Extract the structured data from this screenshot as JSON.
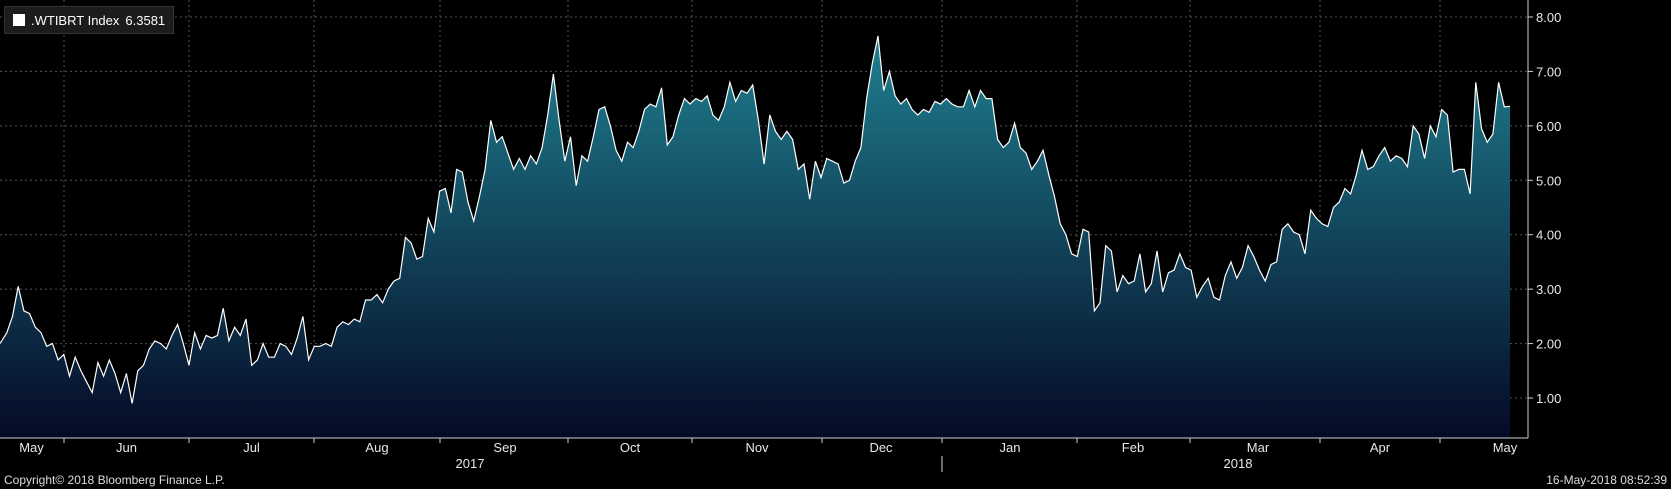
{
  "legend": {
    "series_label": ".WTIBRT Index",
    "last_value": "6.3581",
    "color": "#ffffff"
  },
  "footer": {
    "copyright": "Copyright© 2018 Bloomberg Finance L.P.",
    "timestamp": "16-May-2018 08:52:39"
  },
  "chart_data": {
    "type": "area",
    "ylim": [
      0.3,
      8.2
    ],
    "y_ticks": [
      1.0,
      2.0,
      3.0,
      4.0,
      5.0,
      6.0,
      7.0,
      8.0
    ],
    "y_tick_labels": [
      "1.00",
      "2.00",
      "3.00",
      "4.00",
      "5.00",
      "6.00",
      "7.00",
      "8.00"
    ],
    "grid": true,
    "colors": {
      "line": "#ffffff",
      "fill_top": "#1f7f90",
      "fill_bottom": "#050a26"
    },
    "x_month_labels": [
      {
        "label": "May",
        "x": 31.5
      },
      {
        "label": "Jun",
        "x": 126.5
      },
      {
        "label": "Jul",
        "x": 251.5
      },
      {
        "label": "Aug",
        "x": 377
      },
      {
        "label": "Sep",
        "x": 505
      },
      {
        "label": "Oct",
        "x": 630
      },
      {
        "label": "Nov",
        "x": 757
      },
      {
        "label": "Dec",
        "x": 881
      },
      {
        "label": "Jan",
        "x": 1010
      },
      {
        "label": "Feb",
        "x": 1133
      },
      {
        "label": "Mar",
        "x": 1258
      },
      {
        "label": "Apr",
        "x": 1380
      },
      {
        "label": "May",
        "x": 1505
      }
    ],
    "x_month_boundaries": [
      64,
      189,
      314,
      440,
      568,
      692,
      822,
      942,
      1077,
      1190,
      1320,
      1440
    ],
    "x_year_labels": [
      {
        "label": "2017",
        "x": 470
      },
      {
        "label": "2018",
        "x": 1238
      }
    ],
    "x_year_boundary": 942,
    "x_range": [
      0,
      1510
    ],
    "points": [
      [
        0,
        2.0
      ],
      [
        6,
        2.2
      ],
      [
        11,
        2.5
      ],
      [
        16,
        3.05
      ],
      [
        21,
        2.6
      ],
      [
        26,
        2.55
      ],
      [
        31,
        2.3
      ],
      [
        36,
        2.2
      ],
      [
        41,
        1.95
      ],
      [
        46,
        2.0
      ],
      [
        51,
        1.7
      ],
      [
        56,
        1.8
      ],
      [
        61,
        1.4
      ],
      [
        66,
        1.75
      ],
      [
        71,
        1.5
      ],
      [
        76,
        1.3
      ],
      [
        81,
        1.1
      ],
      [
        86,
        1.65
      ],
      [
        91,
        1.4
      ],
      [
        96,
        1.7
      ],
      [
        101,
        1.45
      ],
      [
        106,
        1.1
      ],
      [
        111,
        1.45
      ],
      [
        116,
        0.9
      ],
      [
        121,
        1.5
      ],
      [
        126,
        1.6
      ],
      [
        131,
        1.9
      ],
      [
        136,
        2.05
      ],
      [
        141,
        2.0
      ],
      [
        146,
        1.9
      ],
      [
        151,
        2.15
      ],
      [
        156,
        2.35
      ],
      [
        161,
        2.0
      ],
      [
        166,
        1.6
      ],
      [
        171,
        2.2
      ],
      [
        176,
        1.9
      ],
      [
        181,
        2.15
      ],
      [
        186,
        2.1
      ],
      [
        191,
        2.15
      ],
      [
        196,
        2.65
      ],
      [
        201,
        2.05
      ],
      [
        206,
        2.3
      ],
      [
        211,
        2.15
      ],
      [
        216,
        2.45
      ],
      [
        221,
        1.6
      ],
      [
        226,
        1.7
      ],
      [
        231,
        2.0
      ],
      [
        236,
        1.75
      ],
      [
        241,
        1.75
      ],
      [
        246,
        2.0
      ],
      [
        251,
        1.95
      ],
      [
        256,
        1.8
      ],
      [
        261,
        2.1
      ],
      [
        266,
        2.5
      ],
      [
        271,
        1.7
      ],
      [
        276,
        1.95
      ],
      [
        281,
        1.95
      ],
      [
        286,
        2.0
      ],
      [
        291,
        1.95
      ],
      [
        296,
        2.3
      ],
      [
        301,
        2.4
      ],
      [
        306,
        2.35
      ],
      [
        311,
        2.45
      ],
      [
        316,
        2.4
      ],
      [
        321,
        2.8
      ],
      [
        326,
        2.8
      ],
      [
        331,
        2.9
      ],
      [
        336,
        2.75
      ],
      [
        341,
        3.0
      ],
      [
        346,
        3.15
      ],
      [
        351,
        3.2
      ],
      [
        356,
        3.95
      ],
      [
        361,
        3.85
      ],
      [
        366,
        3.55
      ],
      [
        371,
        3.6
      ],
      [
        376,
        4.3
      ],
      [
        381,
        4.05
      ],
      [
        386,
        4.8
      ],
      [
        391,
        4.85
      ],
      [
        396,
        4.4
      ],
      [
        401,
        5.2
      ],
      [
        406,
        5.15
      ],
      [
        411,
        4.6
      ],
      [
        416,
        4.25
      ],
      [
        421,
        4.7
      ],
      [
        426,
        5.2
      ],
      [
        431,
        6.1
      ],
      [
        436,
        5.7
      ],
      [
        441,
        5.8
      ],
      [
        446,
        5.5
      ],
      [
        451,
        5.2
      ],
      [
        456,
        5.4
      ],
      [
        461,
        5.2
      ],
      [
        466,
        5.45
      ],
      [
        471,
        5.3
      ],
      [
        476,
        5.6
      ],
      [
        481,
        6.2
      ],
      [
        486,
        6.95
      ],
      [
        491,
        6.1
      ],
      [
        496,
        5.35
      ],
      [
        501,
        5.8
      ],
      [
        506,
        4.9
      ],
      [
        511,
        5.45
      ],
      [
        516,
        5.35
      ],
      [
        521,
        5.8
      ],
      [
        526,
        6.3
      ],
      [
        531,
        6.35
      ],
      [
        536,
        6.0
      ],
      [
        541,
        5.55
      ],
      [
        546,
        5.35
      ],
      [
        551,
        5.7
      ],
      [
        556,
        5.6
      ],
      [
        561,
        5.9
      ],
      [
        566,
        6.3
      ],
      [
        571,
        6.4
      ],
      [
        576,
        6.35
      ],
      [
        581,
        6.7
      ],
      [
        586,
        5.65
      ],
      [
        591,
        5.8
      ],
      [
        596,
        6.2
      ],
      [
        601,
        6.5
      ],
      [
        606,
        6.4
      ],
      [
        611,
        6.5
      ],
      [
        616,
        6.45
      ],
      [
        621,
        6.55
      ],
      [
        626,
        6.2
      ],
      [
        631,
        6.1
      ],
      [
        636,
        6.35
      ],
      [
        641,
        6.8
      ],
      [
        646,
        6.45
      ],
      [
        651,
        6.65
      ],
      [
        656,
        6.6
      ],
      [
        661,
        6.75
      ],
      [
        666,
        6.1
      ],
      [
        671,
        5.3
      ],
      [
        676,
        6.2
      ],
      [
        681,
        5.9
      ],
      [
        686,
        5.75
      ],
      [
        691,
        5.9
      ],
      [
        696,
        5.75
      ],
      [
        701,
        5.2
      ],
      [
        706,
        5.3
      ],
      [
        711,
        4.65
      ],
      [
        716,
        5.35
      ],
      [
        721,
        5.05
      ],
      [
        726,
        5.4
      ],
      [
        731,
        5.35
      ],
      [
        736,
        5.3
      ],
      [
        741,
        4.95
      ],
      [
        746,
        5.0
      ],
      [
        751,
        5.35
      ],
      [
        756,
        5.6
      ],
      [
        761,
        6.5
      ],
      [
        766,
        7.15
      ],
      [
        771,
        7.65
      ],
      [
        776,
        6.65
      ],
      [
        781,
        7.0
      ],
      [
        786,
        6.55
      ],
      [
        791,
        6.4
      ],
      [
        796,
        6.5
      ],
      [
        801,
        6.3
      ],
      [
        806,
        6.2
      ],
      [
        811,
        6.3
      ],
      [
        816,
        6.25
      ],
      [
        821,
        6.45
      ],
      [
        826,
        6.4
      ],
      [
        831,
        6.5
      ],
      [
        836,
        6.4
      ],
      [
        841,
        6.35
      ],
      [
        846,
        6.35
      ],
      [
        851,
        6.65
      ],
      [
        856,
        6.35
      ],
      [
        861,
        6.65
      ],
      [
        866,
        6.5
      ],
      [
        871,
        6.5
      ],
      [
        876,
        5.75
      ],
      [
        881,
        5.6
      ],
      [
        886,
        5.7
      ],
      [
        891,
        6.05
      ],
      [
        896,
        5.6
      ],
      [
        901,
        5.5
      ],
      [
        906,
        5.2
      ],
      [
        911,
        5.35
      ],
      [
        916,
        5.55
      ],
      [
        921,
        5.1
      ],
      [
        926,
        4.7
      ],
      [
        931,
        4.2
      ],
      [
        936,
        4.0
      ],
      [
        941,
        3.65
      ],
      [
        946,
        3.6
      ],
      [
        951,
        4.1
      ],
      [
        956,
        4.05
      ],
      [
        961,
        2.6
      ],
      [
        966,
        2.75
      ],
      [
        971,
        3.8
      ],
      [
        976,
        3.7
      ],
      [
        981,
        2.95
      ],
      [
        986,
        3.25
      ],
      [
        991,
        3.1
      ],
      [
        996,
        3.15
      ],
      [
        1001,
        3.65
      ],
      [
        1006,
        2.95
      ],
      [
        1011,
        3.1
      ],
      [
        1016,
        3.7
      ],
      [
        1021,
        2.95
      ],
      [
        1026,
        3.3
      ],
      [
        1031,
        3.35
      ],
      [
        1036,
        3.65
      ],
      [
        1041,
        3.4
      ],
      [
        1046,
        3.35
      ],
      [
        1051,
        2.85
      ],
      [
        1056,
        3.05
      ],
      [
        1061,
        3.2
      ],
      [
        1066,
        2.85
      ],
      [
        1071,
        2.8
      ],
      [
        1076,
        3.25
      ],
      [
        1081,
        3.5
      ],
      [
        1086,
        3.2
      ],
      [
        1091,
        3.4
      ],
      [
        1096,
        3.8
      ],
      [
        1101,
        3.6
      ],
      [
        1106,
        3.35
      ],
      [
        1111,
        3.15
      ],
      [
        1116,
        3.45
      ],
      [
        1121,
        3.5
      ],
      [
        1126,
        4.1
      ],
      [
        1131,
        4.2
      ],
      [
        1136,
        4.05
      ],
      [
        1141,
        4.0
      ],
      [
        1146,
        3.65
      ],
      [
        1151,
        4.45
      ],
      [
        1156,
        4.3
      ],
      [
        1161,
        4.2
      ],
      [
        1166,
        4.15
      ],
      [
        1171,
        4.5
      ],
      [
        1176,
        4.6
      ],
      [
        1181,
        4.85
      ],
      [
        1186,
        4.75
      ],
      [
        1191,
        5.1
      ],
      [
        1196,
        5.55
      ],
      [
        1201,
        5.2
      ],
      [
        1206,
        5.25
      ],
      [
        1211,
        5.45
      ],
      [
        1216,
        5.6
      ],
      [
        1221,
        5.35
      ],
      [
        1226,
        5.45
      ],
      [
        1231,
        5.4
      ],
      [
        1236,
        5.25
      ],
      [
        1241,
        6.0
      ],
      [
        1246,
        5.85
      ],
      [
        1251,
        5.4
      ],
      [
        1256,
        6.0
      ],
      [
        1261,
        5.8
      ],
      [
        1266,
        6.3
      ],
      [
        1271,
        6.2
      ],
      [
        1276,
        5.15
      ],
      [
        1281,
        5.2
      ],
      [
        1286,
        5.2
      ],
      [
        1291,
        4.75
      ],
      [
        1296,
        6.8
      ],
      [
        1301,
        5.95
      ],
      [
        1306,
        5.7
      ],
      [
        1311,
        5.85
      ],
      [
        1316,
        6.8
      ],
      [
        1321,
        6.35
      ],
      [
        1326,
        6.36
      ]
    ]
  }
}
